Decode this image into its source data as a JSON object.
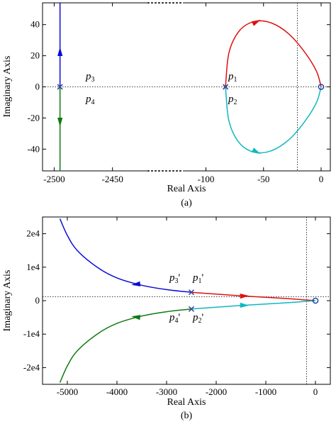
{
  "chart_data": [
    {
      "type": "line",
      "caption": "(a)",
      "xlabel": "Real Axis",
      "ylabel": "Imaginary Axis",
      "x_broken": true,
      "x_ticks_left": [
        "-2500",
        "-2450"
      ],
      "x_ticks_right": [
        "-100",
        "-50",
        "0"
      ],
      "y_ticks": [
        "40",
        "20",
        "0",
        "-20",
        "-40"
      ],
      "ylim": [
        -54,
        54
      ],
      "xlim_left": [
        -2510,
        -2420
      ],
      "xlim_right": [
        -120,
        8
      ],
      "colors": {
        "blue": "#0b0bd6",
        "green": "#0f7a0f",
        "red": "#e01010",
        "cyan": "#10b8c0"
      },
      "poles": [
        {
          "label": "p",
          "sub": "1",
          "x": -83,
          "y": 0
        },
        {
          "label": "p",
          "sub": "2",
          "x": -83,
          "y": 0
        },
        {
          "label": "p",
          "sub": "3",
          "x": -2495,
          "y": 0
        },
        {
          "label": "p",
          "sub": "4",
          "x": -2495,
          "y": 0
        }
      ],
      "zero": {
        "x": 0,
        "y": 0
      },
      "series": [
        {
          "color": "blue",
          "x": [
            -2495,
            -2495
          ],
          "y": [
            0,
            54
          ]
        },
        {
          "color": "green",
          "x": [
            -2495,
            -2495
          ],
          "y": [
            0,
            -54
          ]
        },
        {
          "color": "red",
          "x": [
            -83,
            -80,
            -71,
            -58,
            -43,
            -28,
            -14,
            -4,
            0
          ],
          "y": [
            0,
            22,
            36,
            42,
            41,
            34,
            22,
            10,
            0
          ]
        },
        {
          "color": "cyan",
          "x": [
            -83,
            -80,
            -71,
            -58,
            -43,
            -28,
            -14,
            -4,
            0
          ],
          "y": [
            0,
            -22,
            -36,
            -42,
            -41,
            -34,
            -22,
            -10,
            0
          ]
        }
      ]
    },
    {
      "type": "line",
      "caption": "(b)",
      "xlabel": "Real Axis",
      "ylabel": "Imaginary Axis",
      "x_ticks": [
        "-5000",
        "-4000",
        "-3000",
        "-2000",
        "-1000",
        "0"
      ],
      "y_ticks": [
        "2e4",
        "1e4",
        "0",
        "-1e4",
        "-2e4"
      ],
      "xlim": [
        -5500,
        300
      ],
      "ylim": [
        -25000,
        25000
      ],
      "pole_labels": [
        {
          "label": "p",
          "sub": "3",
          "prime": "'"
        },
        {
          "label": "p",
          "sub": "1",
          "prime": "'"
        },
        {
          "label": "p",
          "sub": "4",
          "prime": "'"
        },
        {
          "label": "p",
          "sub": "2",
          "prime": "'"
        }
      ],
      "pole": {
        "x": -2500,
        "y": 0
      },
      "zero": {
        "x": 0,
        "y": 0
      },
      "series": [
        {
          "color": "blue",
          "x": [
            -2500,
            -3000,
            -3500,
            -4000,
            -4400,
            -4800,
            -5000,
            -5150
          ],
          "y": [
            2500,
            3300,
            4600,
            6800,
            10000,
            15000,
            19500,
            24500
          ]
        },
        {
          "color": "green",
          "x": [
            -2500,
            -3000,
            -3500,
            -4000,
            -4400,
            -4800,
            -5000,
            -5150
          ],
          "y": [
            -2500,
            -3300,
            -4600,
            -6800,
            -10000,
            -15000,
            -19500,
            -24500
          ]
        },
        {
          "color": "red",
          "x": [
            -2500,
            -2000,
            -1500,
            -1000,
            -500,
            -200,
            0
          ],
          "y": [
            2500,
            1950,
            1450,
            1000,
            550,
            220,
            0
          ]
        },
        {
          "color": "cyan",
          "x": [
            -2500,
            -2000,
            -1500,
            -1000,
            -500,
            -200,
            0
          ],
          "y": [
            -2500,
            -1950,
            -1450,
            -1000,
            -550,
            -220,
            0
          ]
        }
      ]
    }
  ]
}
